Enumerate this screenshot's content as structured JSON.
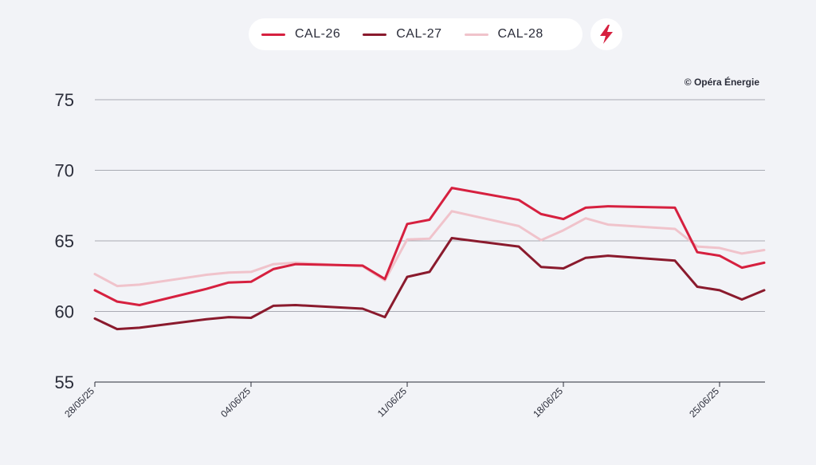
{
  "legend": {
    "items": [
      {
        "label": "CAL-26",
        "color": "#d6203f"
      },
      {
        "label": "CAL-27",
        "color": "#8a1a2d"
      },
      {
        "label": "CAL-28",
        "color": "#f0c3cb"
      }
    ],
    "action_icon": "lightning-bolt-icon"
  },
  "credit": "© Opéra Énergie",
  "chart_data": {
    "type": "line",
    "title": "",
    "xlabel": "",
    "ylabel": "",
    "ylim": [
      55,
      75
    ],
    "yticks": [
      55,
      60,
      65,
      70,
      75
    ],
    "grid": true,
    "legend_position": "top-center",
    "x_tick_labels": [
      "28/05/25",
      "04/06/25",
      "11/06/25",
      "18/06/25",
      "25/06/25"
    ],
    "x": [
      "28/05/25",
      "29/05/25",
      "30/05/25",
      "02/06/25",
      "03/06/25",
      "04/06/25",
      "05/06/25",
      "06/06/25",
      "09/06/25",
      "10/06/25",
      "11/06/25",
      "12/06/25",
      "13/06/25",
      "16/06/25",
      "17/06/25",
      "18/06/25",
      "19/06/25",
      "20/06/25",
      "23/06/25",
      "24/06/25",
      "25/06/25",
      "26/06/25",
      "27/06/25"
    ],
    "series": [
      {
        "name": "CAL-26",
        "color": "#d6203f",
        "values": [
          61.5,
          60.7,
          60.45,
          61.6,
          62.05,
          62.1,
          63.0,
          63.35,
          63.25,
          62.3,
          66.2,
          66.5,
          68.75,
          67.9,
          66.9,
          66.55,
          67.35,
          67.45,
          67.35,
          64.2,
          63.95,
          63.1,
          63.45
        ]
      },
      {
        "name": "CAL-27",
        "color": "#8a1a2d",
        "values": [
          59.5,
          58.75,
          58.85,
          59.45,
          59.6,
          59.55,
          60.4,
          60.45,
          60.2,
          59.6,
          62.45,
          62.8,
          65.2,
          64.6,
          63.15,
          63.05,
          63.8,
          63.95,
          63.6,
          61.75,
          61.5,
          60.85,
          61.5
        ]
      },
      {
        "name": "CAL-28",
        "color": "#f0c3cb",
        "values": [
          62.65,
          61.8,
          61.9,
          62.6,
          62.75,
          62.8,
          63.35,
          63.45,
          63.2,
          62.2,
          65.1,
          65.15,
          67.1,
          66.05,
          65.05,
          65.75,
          66.6,
          66.15,
          65.85,
          64.6,
          64.5,
          64.1,
          64.35
        ]
      }
    ]
  }
}
